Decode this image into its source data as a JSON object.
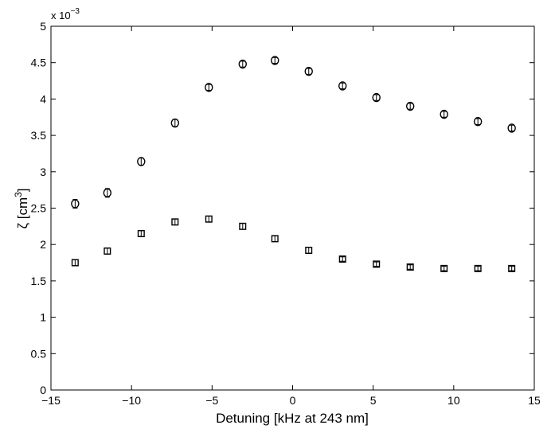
{
  "chart_data": {
    "type": "scatter",
    "title": "",
    "xlabel": "Detuning [kHz at 243 nm]",
    "ylabel_symbol": "ζ",
    "ylabel_unit": "[cm",
    "ylabel_exp": "3",
    "ylabel_close": "]",
    "y_multiplier_base": "x 10",
    "y_multiplier_exp": "−3",
    "xlim": [
      -15,
      15
    ],
    "ylim": [
      0,
      5
    ],
    "x_ticks": [
      -15,
      -10,
      -5,
      0,
      5,
      10,
      15
    ],
    "x_tick_labels": [
      "−15",
      "−10",
      "−5",
      "0",
      "5",
      "10",
      "15"
    ],
    "y_ticks": [
      0,
      0.5,
      1,
      1.5,
      2,
      2.5,
      3,
      3.5,
      4,
      4.5,
      5
    ],
    "y_tick_labels": [
      "0",
      "0.5",
      "1",
      "1.5",
      "2",
      "2.5",
      "3",
      "3.5",
      "4",
      "4.5",
      "5"
    ],
    "grid": false,
    "legend": "none",
    "x": [
      -13.5,
      -11.5,
      -9.4,
      -7.3,
      -5.2,
      -3.1,
      -1.1,
      1.0,
      3.1,
      5.2,
      7.3,
      9.4,
      11.5,
      13.6
    ],
    "series": [
      {
        "marker": "circle",
        "values": [
          2.56,
          2.71,
          3.14,
          3.67,
          4.16,
          4.48,
          4.53,
          4.38,
          4.18,
          4.02,
          3.9,
          3.79,
          3.69,
          3.6
        ],
        "errors": [
          0.06,
          0.06,
          0.05,
          0.05,
          0.04,
          0.04,
          0.04,
          0.04,
          0.04,
          0.04,
          0.04,
          0.04,
          0.04,
          0.04
        ]
      },
      {
        "marker": "square",
        "values": [
          1.75,
          1.91,
          2.15,
          2.31,
          2.35,
          2.25,
          2.08,
          1.92,
          1.8,
          1.73,
          1.69,
          1.67,
          1.67,
          1.67
        ],
        "errors": [
          0.04,
          0.04,
          0.04,
          0.04,
          0.04,
          0.04,
          0.04,
          0.04,
          0.03,
          0.03,
          0.03,
          0.03,
          0.03,
          0.03
        ]
      }
    ],
    "colors": {
      "axis": "#000000",
      "marker": "#000000",
      "background": "#ffffff"
    }
  }
}
